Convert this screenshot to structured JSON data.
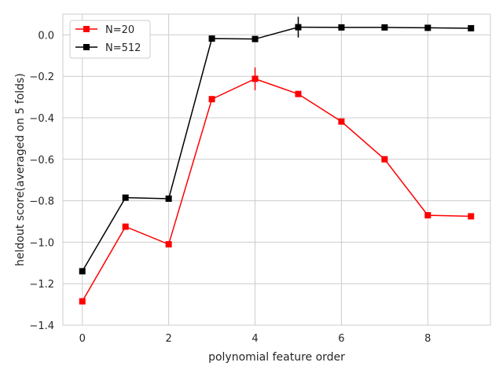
{
  "chart_data": {
    "type": "line",
    "xlabel": "polynomial feature order",
    "ylabel": "heldout score(averaged on 5 folds)",
    "xlim": [
      -0.45,
      9.45
    ],
    "ylim": [
      -1.4,
      0.1
    ],
    "x_ticks": [
      0,
      2,
      4,
      6,
      8
    ],
    "y_ticks": [
      0.0,
      -0.2,
      -0.4,
      -0.6,
      -0.8,
      -1.0,
      -1.2,
      -1.4
    ],
    "y_tick_labels": [
      "0.0",
      "−0.2",
      "−0.4",
      "−0.6",
      "−0.8",
      "−1.0",
      "−1.2",
      "−1.4"
    ],
    "grid": true,
    "legend_position": "top-left",
    "x": [
      0,
      1,
      2,
      3,
      4,
      5,
      6,
      7,
      8,
      9
    ],
    "series": [
      {
        "name": "N=20",
        "color": "#ff0000",
        "values": [
          -1.285,
          -0.925,
          -1.01,
          -0.31,
          -0.212,
          -0.285,
          -0.418,
          -0.6,
          -0.87,
          -0.875
        ],
        "errors": [
          0,
          0,
          0,
          0,
          0.055,
          0,
          0,
          0,
          0,
          0
        ]
      },
      {
        "name": "N=512",
        "color": "#000000",
        "values": [
          -1.14,
          -0.785,
          -0.79,
          -0.018,
          -0.02,
          0.037,
          0.036,
          0.036,
          0.034,
          0.032
        ],
        "errors": [
          0,
          0,
          0,
          0,
          0,
          0.05,
          0,
          0,
          0,
          0
        ]
      }
    ]
  }
}
